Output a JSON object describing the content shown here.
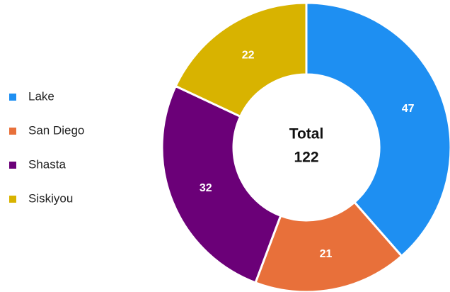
{
  "chart_data": {
    "type": "donut",
    "categories": [
      "Lake",
      "San Diego",
      "Shasta",
      "Siskiyou"
    ],
    "values": [
      47,
      21,
      32,
      22
    ],
    "colors": [
      "#1e8ff2",
      "#e8703a",
      "#6b0078",
      "#d8b300"
    ],
    "center_label": "Total",
    "total": 122,
    "legend": "left"
  }
}
